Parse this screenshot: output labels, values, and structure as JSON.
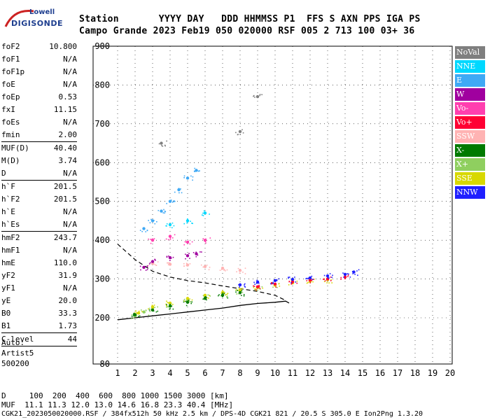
{
  "logo": {
    "line1": "Lowell",
    "line2": "DIGISONDE"
  },
  "header": {
    "labels": "Station       YYYY DAY   DDD HHMMSS P1  FFS S AXN PPS IGA PS",
    "values": "Campo Grande 2023 Feb19 050 020000 RSF 005 2 713 100 03+ 36"
  },
  "params": [
    {
      "name": "foF2",
      "value": "10.800"
    },
    {
      "name": "foF1",
      "value": "N/A"
    },
    {
      "name": "foF1p",
      "value": "N/A"
    },
    {
      "name": "foE",
      "value": "N/A"
    },
    {
      "name": "foEp",
      "value": "0.53"
    },
    {
      "name": "fxI",
      "value": "11.15"
    },
    {
      "name": "foEs",
      "value": "N/A"
    },
    {
      "name": "fmin",
      "value": "2.00",
      "sep": true
    },
    {
      "name": "MUF(D)",
      "value": "40.40"
    },
    {
      "name": "M(D)",
      "value": "3.74"
    },
    {
      "name": "D",
      "value": "N/A",
      "sep": true
    },
    {
      "name": "h`F",
      "value": "201.5"
    },
    {
      "name": "h`F2",
      "value": "201.5"
    },
    {
      "name": "h`E",
      "value": "N/A"
    },
    {
      "name": "h`Es",
      "value": "N/A",
      "sep": true
    },
    {
      "name": "hmF2",
      "value": "243.7"
    },
    {
      "name": "hmF1",
      "value": "N/A"
    },
    {
      "name": "hmE",
      "value": "110.0"
    },
    {
      "name": "yF2",
      "value": "31.9"
    },
    {
      "name": "yF1",
      "value": "N/A"
    },
    {
      "name": "yE",
      "value": "20.0"
    },
    {
      "name": "B0",
      "value": "33.3"
    },
    {
      "name": "B1",
      "value": "1.73",
      "sep": true
    },
    {
      "name": "C-level",
      "value": "44",
      "sep": true
    }
  ],
  "auto": {
    "line1": "Auto:",
    "line2": "Artist5",
    "line3": "500200"
  },
  "legend": [
    {
      "label": "NoVal",
      "color": "#7f7f7f"
    },
    {
      "label": "NNE",
      "color": "#00d8ff"
    },
    {
      "label": "E",
      "color": "#3fa9f5"
    },
    {
      "label": "W",
      "color": "#a0009f"
    },
    {
      "label": "Vo-",
      "color": "#ff3faf"
    },
    {
      "label": "Vo+",
      "color": "#ff0033"
    },
    {
      "label": "SSW",
      "color": "#ffb3b3"
    },
    {
      "label": "X-",
      "color": "#007a00"
    },
    {
      "label": "X+",
      "color": "#8fcf5f"
    },
    {
      "label": "SSE",
      "color": "#d8d800"
    },
    {
      "label": "NNW",
      "color": "#1f1fff"
    }
  ],
  "footer": {
    "line1": "D     100  200  400  600  800 1000 1500 3000 [km]",
    "line2": "MUF  11.1 11.3 12.0 13.0 14.6 16.8 23.3 40.4 [MHz]",
    "line3": "CGK21_2023050020000.RSF / 384fx512h 50 kHz 2.5 km / DPS-4D CGK21 821 / 20.5 S 305.0 E Ion2Png 1.3.20"
  },
  "chart_data": {
    "type": "scatter",
    "title": "",
    "xlabel": "",
    "ylabel": "",
    "xlim": [
      1,
      20
    ],
    "x_ticks": [
      1,
      2,
      3,
      4,
      5,
      6,
      7,
      8,
      9,
      10,
      11,
      12,
      13,
      14,
      15,
      16,
      17,
      18,
      19,
      20
    ],
    "y_ticks": [
      80,
      200,
      300,
      400,
      500,
      600,
      700,
      800,
      900
    ],
    "y_axis_note": "non-linear height scale: 80 at bottom, 200-900 evenly spaced",
    "grid": true,
    "series": [
      {
        "name": "X+",
        "color": "#8fcf5f",
        "points": [
          [
            2.0,
            205
          ],
          [
            2.5,
            215
          ],
          [
            3,
            225
          ],
          [
            4,
            235
          ],
          [
            5,
            245
          ],
          [
            6,
            255
          ],
          [
            7,
            262
          ],
          [
            8,
            270
          ],
          [
            9,
            278
          ],
          [
            10,
            285
          ]
        ]
      },
      {
        "name": "SSE",
        "color": "#d8d800",
        "points": [
          [
            2.2,
            212
          ],
          [
            3,
            228
          ],
          [
            4,
            238
          ],
          [
            5,
            250
          ],
          [
            6,
            258
          ],
          [
            7,
            265
          ],
          [
            8,
            272
          ],
          [
            9,
            278
          ],
          [
            10,
            284
          ],
          [
            11,
            290
          ],
          [
            12,
            294
          ],
          [
            13,
            298
          ]
        ]
      },
      {
        "name": "X-",
        "color": "#007a00",
        "points": [
          [
            2.0,
            208
          ],
          [
            3,
            220
          ],
          [
            4,
            230
          ],
          [
            5,
            240
          ],
          [
            6,
            250
          ],
          [
            7,
            258
          ],
          [
            8,
            265
          ]
        ]
      },
      {
        "name": "Vo+",
        "color": "#ff0033",
        "points": [
          [
            9,
            280
          ],
          [
            10,
            287
          ],
          [
            11,
            293
          ],
          [
            12,
            297
          ],
          [
            13,
            300
          ],
          [
            14,
            305
          ]
        ]
      },
      {
        "name": "NNW",
        "color": "#1f1fff",
        "points": [
          [
            8,
            285
          ],
          [
            9,
            292
          ],
          [
            10,
            296
          ],
          [
            11,
            299
          ],
          [
            12,
            303
          ],
          [
            13,
            308
          ],
          [
            14,
            312
          ],
          [
            14.5,
            318
          ]
        ]
      },
      {
        "name": "SSW",
        "color": "#ffb3b3",
        "points": [
          [
            3,
            340
          ],
          [
            4,
            338
          ],
          [
            5,
            336
          ],
          [
            6,
            332
          ],
          [
            7,
            328
          ],
          [
            8,
            322
          ]
        ]
      },
      {
        "name": "W",
        "color": "#a0009f",
        "points": [
          [
            2.5,
            330
          ],
          [
            3,
            345
          ],
          [
            4,
            355
          ],
          [
            5,
            360
          ],
          [
            5.5,
            365
          ]
        ]
      },
      {
        "name": "E",
        "color": "#3fa9f5",
        "points": [
          [
            2.5,
            430
          ],
          [
            3,
            450
          ],
          [
            3.5,
            475
          ],
          [
            4,
            500
          ],
          [
            4.5,
            530
          ],
          [
            5,
            560
          ],
          [
            5.5,
            580
          ]
        ]
      },
      {
        "name": "Vo-",
        "color": "#ff3faf",
        "points": [
          [
            3,
            400
          ],
          [
            4,
            410
          ],
          [
            5,
            395
          ],
          [
            6,
            400
          ]
        ]
      },
      {
        "name": "NNE",
        "color": "#00d8ff",
        "points": [
          [
            4,
            440
          ],
          [
            5,
            450
          ],
          [
            6,
            470
          ]
        ]
      },
      {
        "name": "NoVal",
        "color": "#7f7f7f",
        "points": [
          [
            3.5,
            650
          ],
          [
            8,
            680
          ],
          [
            9,
            770
          ]
        ]
      }
    ],
    "profile_dashed": [
      [
        1,
        390
      ],
      [
        2,
        350
      ],
      [
        3,
        320
      ],
      [
        4,
        305
      ],
      [
        5,
        296
      ],
      [
        6,
        290
      ],
      [
        7,
        282
      ],
      [
        8,
        275
      ],
      [
        9,
        268
      ],
      [
        10,
        258
      ],
      [
        10.6,
        245
      ]
    ],
    "profile_solid": [
      [
        1,
        195
      ],
      [
        2,
        200
      ],
      [
        3,
        205
      ],
      [
        4,
        210
      ],
      [
        5,
        215
      ],
      [
        6,
        220
      ],
      [
        7,
        225
      ],
      [
        8,
        232
      ],
      [
        9,
        237
      ],
      [
        10,
        240
      ],
      [
        10.6,
        243
      ],
      [
        10.8,
        238
      ]
    ]
  }
}
